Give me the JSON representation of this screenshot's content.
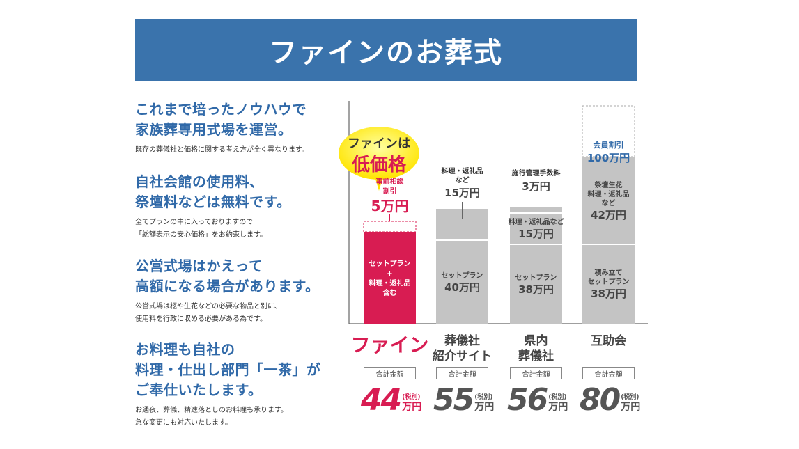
{
  "banner": {
    "title": "ファインのお葬式"
  },
  "points": [
    {
      "heading": "これまで培ったノウハウで\n家族葬専用式場を運営。",
      "body": "既存の葬儀社と価格に関する考え方が全く異なります。"
    },
    {
      "heading": "自社会館の使用料、\n祭壇料などは無料です。",
      "body": "全てプランの中に入っておりますので\n「総額表示の安心価格」をお約束します。"
    },
    {
      "heading": "公営式場はかえって\n高額になる場合があります。",
      "body": "公営式場は柩や生花などの必要な物品と別に、\n使用料を行政に収める必要がある為です。"
    },
    {
      "heading": "お料理も自社の\n料理・仕出し部門「一茶」が\nご奉仕いたします。",
      "body": "お通夜、葬儀、精進落としのお料理も承ります。\n急な変更にも対応いたします。"
    }
  ],
  "chart_data": {
    "type": "bar",
    "stacked": true,
    "unit": "万円",
    "callout": {
      "line1": "ファインは",
      "line2": "低価格"
    },
    "total_label": "合計金額",
    "tax_label": "(税別)",
    "categories": [
      {
        "name": "ファイン",
        "total": "44",
        "segments": [
          {
            "value": 44,
            "label": "セットプラン\n+\n料理・返礼品\n含む",
            "color": "#d81c52"
          }
        ],
        "discount": {
          "value": 5,
          "label": "事前相談\n割引",
          "amount": "5万円"
        }
      },
      {
        "name": "葬儀社\n紹介サイト",
        "total": "55",
        "segments": [
          {
            "value": 40,
            "label": "セットプラン",
            "amount": "40万円",
            "color": "#c4c4c4"
          },
          {
            "value": 15,
            "label": "料理・返礼品\nなど",
            "amount": "15万円",
            "color": "#c4c4c4"
          }
        ]
      },
      {
        "name": "県内\n葬儀社",
        "total": "56",
        "segments": [
          {
            "value": 38,
            "label": "セットプラン",
            "amount": "38万円",
            "color": "#c4c4c4"
          },
          {
            "value": 15,
            "label": "料理・返礼品など",
            "amount": "15万円",
            "color": "#c4c4c4"
          },
          {
            "value": 3,
            "label": "施行管理手数料",
            "amount": "3万円",
            "color": "#c4c4c4"
          }
        ]
      },
      {
        "name": "互助会",
        "total": "80",
        "segments": [
          {
            "value": 38,
            "label": "積み立て\nセットプラン",
            "amount": "38万円",
            "color": "#c4c4c4"
          },
          {
            "value": 42,
            "label": "祭壇生花\n料理・返礼品\nなど",
            "amount": "42万円",
            "color": "#c4c4c4"
          }
        ],
        "discount": {
          "value": 100,
          "label": "会員割引",
          "amount": "100万円"
        }
      }
    ],
    "colors": {
      "accent": "#d81c52",
      "brand_blue": "#3069a8",
      "bar_gray": "#c4c4c4",
      "total_gray": "#555555"
    }
  }
}
